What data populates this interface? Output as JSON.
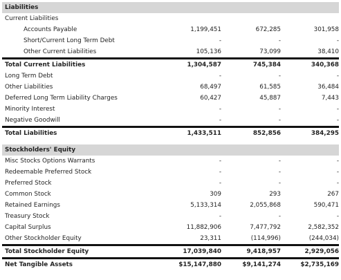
{
  "liabilities": {
    "header": "Liabilities",
    "current_label": "Current Liabilities",
    "current_items": [
      {
        "label": "Accounts Payable",
        "v1": "1,199,451",
        "v2": "672,285",
        "v3": "301,958"
      },
      {
        "label": "Short/Current Long Term Debt",
        "v1": "-",
        "v2": "-",
        "v3": "-"
      },
      {
        "label": "Other Current Liabilities",
        "v1": "105,136",
        "v2": "73,099",
        "v3": "38,410"
      }
    ],
    "total_current": {
      "label": "Total Current Liabilities",
      "v1": "1,304,587",
      "v2": "745,384",
      "v3": "340,368"
    },
    "other_items": [
      {
        "label": "Long Term Debt",
        "v1": "-",
        "v2": "-",
        "v3": "-"
      },
      {
        "label": "Other Liabilities",
        "v1": "68,497",
        "v2": "61,585",
        "v3": "36,484"
      },
      {
        "label": "Deferred Long Term Liability Charges",
        "v1": "60,427",
        "v2": "45,887",
        "v3": "7,443"
      },
      {
        "label": "Minority Interest",
        "v1": "-",
        "v2": "-",
        "v3": "-"
      },
      {
        "label": "Negative Goodwill",
        "v1": "-",
        "v2": "-",
        "v3": "-"
      }
    ],
    "total": {
      "label": "Total Liabilities",
      "v1": "1,433,511",
      "v2": "852,856",
      "v3": "384,295"
    }
  },
  "equity": {
    "header": "Stockholders' Equity",
    "items": [
      {
        "label": "Misc Stocks Options Warrants",
        "v1": "-",
        "v2": "-",
        "v3": "-"
      },
      {
        "label": "Redeemable Preferred Stock",
        "v1": "-",
        "v2": "-",
        "v3": "-"
      },
      {
        "label": "Preferred Stock",
        "v1": "-",
        "v2": "-",
        "v3": "-"
      },
      {
        "label": "Common Stock",
        "v1": "309",
        "v2": "293",
        "v3": "267"
      },
      {
        "label": "Retained Earnings",
        "v1": "5,133,314",
        "v2": "2,055,868",
        "v3": "590,471"
      },
      {
        "label": "Treasury Stock",
        "v1": "-",
        "v2": "-",
        "v3": "-"
      },
      {
        "label": "Capital Surplus",
        "v1": "11,882,906",
        "v2": "7,477,792",
        "v3": "2,582,352"
      },
      {
        "label": "Other Stockholder Equity",
        "v1": "23,311",
        "v2": "(114,996)",
        "v3": "(244,034)"
      }
    ],
    "total": {
      "label": "Total Stockholder Equity",
      "v1": "17,039,840",
      "v2": "9,418,957",
      "v3": "2,929,056"
    },
    "net_tangible": {
      "label": "Net Tangible Assets",
      "v1": "$15,147,880",
      "v2": "$9,141,274",
      "v3": "$2,735,169"
    }
  }
}
